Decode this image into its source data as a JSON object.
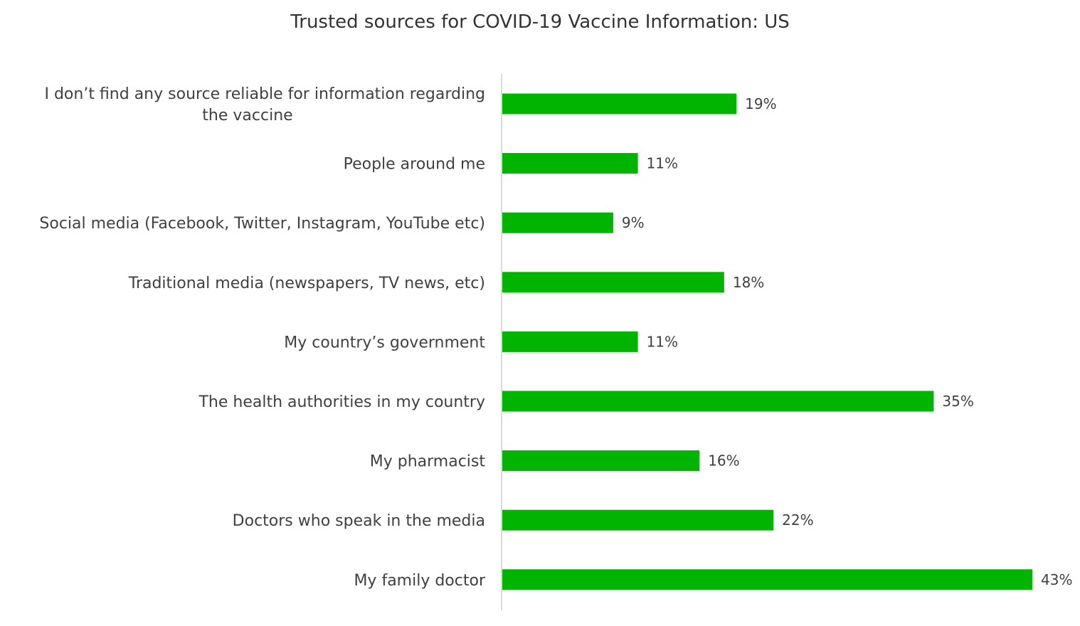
{
  "chart_data": {
    "type": "bar",
    "orientation": "horizontal",
    "title": "Trusted sources for COVID-19 Vaccine Information: US",
    "categories": [
      "I don’t find any source reliable for information regarding the vaccine",
      "People around me",
      "Social media (Facebook, Twitter, Instagram, YouTube etc)",
      "Traditional media (newspapers, TV news, etc)",
      "My country’s government",
      "The health authorities in my country",
      "My pharmacist",
      "Doctors who speak in the media",
      "My family doctor"
    ],
    "values": [
      19,
      11,
      9,
      18,
      11,
      35,
      16,
      22,
      43
    ],
    "value_labels": [
      "19%",
      "11%",
      "9%",
      "18%",
      "11%",
      "35%",
      "16%",
      "22%",
      "43%"
    ],
    "unit": "%",
    "xlim": [
      0,
      43
    ],
    "grid": false,
    "legend": "none",
    "bar_color": "#00b400",
    "axis_color": "#d9d9d9"
  }
}
